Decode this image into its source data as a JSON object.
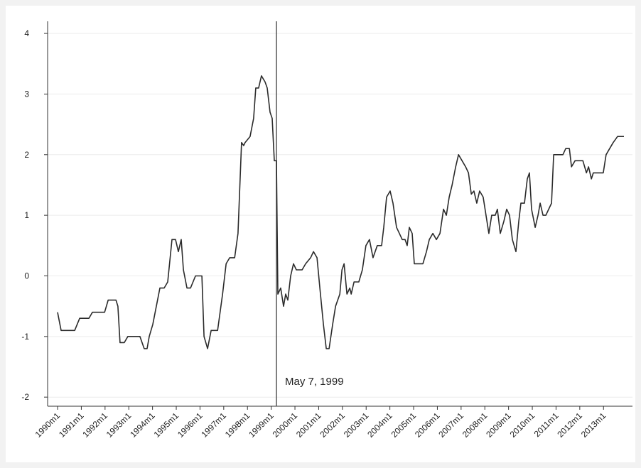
{
  "chart_data": {
    "type": "line",
    "color": "#2b2b2b",
    "grid": true,
    "xlim": [
      1989.58,
      2014.22
    ],
    "ylim": [
      -2.15,
      4.2
    ],
    "yticks": [
      -2,
      -1,
      0,
      1,
      2,
      3,
      4
    ],
    "xticks": [
      {
        "value": 1990,
        "label": "1990m1"
      },
      {
        "value": 1991,
        "label": "1991m1"
      },
      {
        "value": 1992,
        "label": "1992m1"
      },
      {
        "value": 1993,
        "label": "1993m1"
      },
      {
        "value": 1994,
        "label": "1994m1"
      },
      {
        "value": 1995,
        "label": "1995m1"
      },
      {
        "value": 1996,
        "label": "1996m1"
      },
      {
        "value": 1997,
        "label": "1997m1"
      },
      {
        "value": 1998,
        "label": "1998m1"
      },
      {
        "value": 1999,
        "label": "1999m1"
      },
      {
        "value": 2000,
        "label": "2000m1"
      },
      {
        "value": 2001,
        "label": "2001m1"
      },
      {
        "value": 2002,
        "label": "2002m1"
      },
      {
        "value": 2003,
        "label": "2003m1"
      },
      {
        "value": 2004,
        "label": "2004m1"
      },
      {
        "value": 2005,
        "label": "2005m1"
      },
      {
        "value": 2006,
        "label": "2006m1"
      },
      {
        "value": 2007,
        "label": "2007m1"
      },
      {
        "value": 2008,
        "label": "2008m1"
      },
      {
        "value": 2009,
        "label": "2009m1"
      },
      {
        "value": 2010,
        "label": "2010m1"
      },
      {
        "value": 2011,
        "label": "2011m1"
      },
      {
        "value": 2012,
        "label": "2012m1"
      },
      {
        "value": 2013,
        "label": "2013m1"
      }
    ],
    "annotations": [
      {
        "text": "May 7, 1999",
        "x": 1999.22
      }
    ],
    "x": [
      1990.0,
      1990.15,
      1990.72,
      1990.93,
      1991.32,
      1991.47,
      1991.98,
      1992.13,
      1992.46,
      1992.54,
      1992.63,
      1992.81,
      1992.96,
      1993.47,
      1993.65,
      1993.77,
      1993.86,
      1994.01,
      1994.16,
      1994.31,
      1994.49,
      1994.64,
      1994.82,
      1994.97,
      1995.09,
      1995.21,
      1995.3,
      1995.45,
      1995.6,
      1995.81,
      1996.08,
      1996.17,
      1996.32,
      1996.47,
      1996.74,
      1996.95,
      1997.1,
      1997.25,
      1997.46,
      1997.6,
      1997.75,
      1997.84,
      1997.9,
      1998.11,
      1998.26,
      1998.35,
      1998.47,
      1998.59,
      1998.74,
      1998.83,
      1998.95,
      1999.04,
      1999.13,
      1999.22,
      1999.28,
      1999.4,
      1999.52,
      1999.61,
      1999.7,
      1999.82,
      1999.94,
      2000.06,
      2000.3,
      2000.45,
      2000.66,
      2000.78,
      2000.93,
      2001.05,
      2001.2,
      2001.32,
      2001.44,
      2001.59,
      2001.71,
      2001.89,
      2001.98,
      2002.07,
      2002.19,
      2002.31,
      2002.37,
      2002.49,
      2002.69,
      2002.84,
      2002.99,
      2003.14,
      2003.29,
      2003.47,
      2003.65,
      2003.74,
      2003.86,
      2004.01,
      2004.13,
      2004.28,
      2004.4,
      2004.52,
      2004.64,
      2004.73,
      2004.82,
      2004.94,
      2005.03,
      2005.39,
      2005.54,
      2005.66,
      2005.81,
      2005.96,
      2006.11,
      2006.26,
      2006.38,
      2006.5,
      2006.62,
      2006.77,
      2006.89,
      2007.04,
      2007.19,
      2007.31,
      2007.43,
      2007.54,
      2007.66,
      2007.78,
      2007.93,
      2008.05,
      2008.17,
      2008.29,
      2008.44,
      2008.53,
      2008.65,
      2008.8,
      2008.92,
      2009.04,
      2009.16,
      2009.31,
      2009.43,
      2009.52,
      2009.67,
      2009.79,
      2009.88,
      2009.97,
      2010.12,
      2010.24,
      2010.33,
      2010.45,
      2010.57,
      2010.69,
      2010.81,
      2010.9,
      2011.29,
      2011.41,
      2011.56,
      2011.65,
      2011.8,
      2012.13,
      2012.28,
      2012.37,
      2012.49,
      2012.57,
      2012.99,
      2013.11,
      2013.26,
      2013.41,
      2013.59,
      2013.86
    ],
    "values": [
      -0.6,
      -0.9,
      -0.9,
      -0.7,
      -0.7,
      -0.6,
      -0.6,
      -0.4,
      -0.4,
      -0.5,
      -1.1,
      -1.1,
      -1.0,
      -1.0,
      -1.2,
      -1.2,
      -1.0,
      -0.8,
      -0.5,
      -0.2,
      -0.2,
      -0.1,
      0.6,
      0.6,
      0.4,
      0.6,
      0.1,
      -0.2,
      -0.2,
      0.0,
      0.0,
      -1.0,
      -1.2,
      -0.9,
      -0.9,
      -0.3,
      0.2,
      0.3,
      0.3,
      0.7,
      2.2,
      2.15,
      2.2,
      2.3,
      2.6,
      3.1,
      3.1,
      3.3,
      3.2,
      3.1,
      2.7,
      2.6,
      1.9,
      1.9,
      -0.3,
      -0.2,
      -0.5,
      -0.3,
      -0.4,
      0.0,
      0.2,
      0.1,
      0.1,
      0.2,
      0.3,
      0.4,
      0.3,
      -0.2,
      -0.8,
      -1.2,
      -1.2,
      -0.8,
      -0.5,
      -0.3,
      0.1,
      0.2,
      -0.3,
      -0.2,
      -0.3,
      -0.1,
      -0.1,
      0.1,
      0.5,
      0.6,
      0.3,
      0.5,
      0.5,
      0.8,
      1.3,
      1.4,
      1.2,
      0.8,
      0.7,
      0.6,
      0.6,
      0.5,
      0.8,
      0.7,
      0.2,
      0.2,
      0.4,
      0.6,
      0.7,
      0.6,
      0.7,
      1.1,
      1.0,
      1.3,
      1.5,
      1.8,
      2.0,
      1.9,
      1.8,
      1.7,
      1.35,
      1.4,
      1.2,
      1.4,
      1.3,
      1.0,
      0.7,
      1.0,
      1.0,
      1.1,
      0.7,
      0.9,
      1.1,
      1.0,
      0.6,
      0.4,
      0.9,
      1.2,
      1.2,
      1.6,
      1.7,
      1.1,
      0.8,
      1.0,
      1.2,
      1.0,
      1.0,
      1.1,
      1.2,
      2.0,
      2.0,
      2.1,
      2.1,
      1.8,
      1.9,
      1.9,
      1.7,
      1.8,
      1.6,
      1.7,
      1.7,
      2.0,
      2.1,
      2.2,
      2.3,
      2.3
    ]
  }
}
